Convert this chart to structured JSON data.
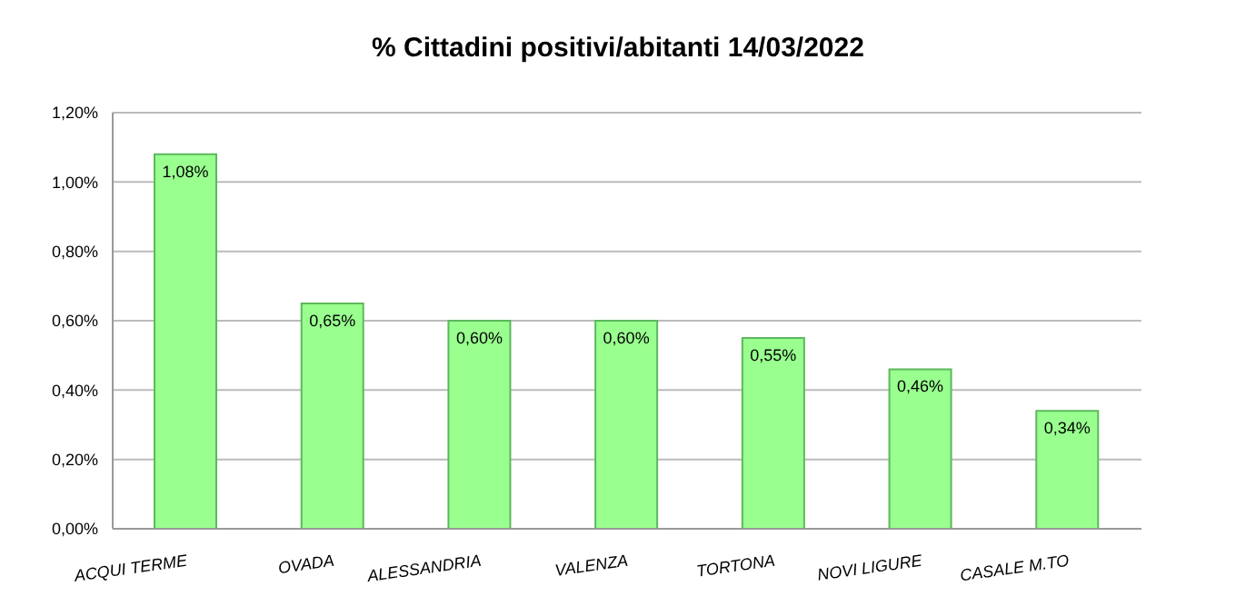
{
  "chart_data": {
    "type": "bar",
    "title": "% Cittadini positivi/abitanti 14/03/2022",
    "categories": [
      "ACQUI TERME",
      "OVADA",
      "ALESSANDRIA",
      "VALENZA",
      "TORTONA",
      "NOVI LIGURE",
      "CASALE M.TO"
    ],
    "values": [
      1.08,
      0.65,
      0.6,
      0.6,
      0.55,
      0.46,
      0.34
    ],
    "value_labels": [
      "1,08%",
      "0,65%",
      "0,60%",
      "0,60%",
      "0,55%",
      "0,46%",
      "0,34%"
    ],
    "color": "#99ff8f",
    "ylim": [
      0,
      1.2
    ],
    "yticks": [
      {
        "value": 0,
        "label": "0,00%"
      },
      {
        "value": 0.2,
        "label": "0,20%"
      },
      {
        "value": 0.4,
        "label": "0,40%"
      },
      {
        "value": 0.6,
        "label": "0,60%"
      },
      {
        "value": 0.8,
        "label": "0,80%"
      },
      {
        "value": 1.0,
        "label": "1,00%"
      },
      {
        "value": 1.2,
        "label": "1,20%"
      }
    ],
    "grid": "y"
  }
}
